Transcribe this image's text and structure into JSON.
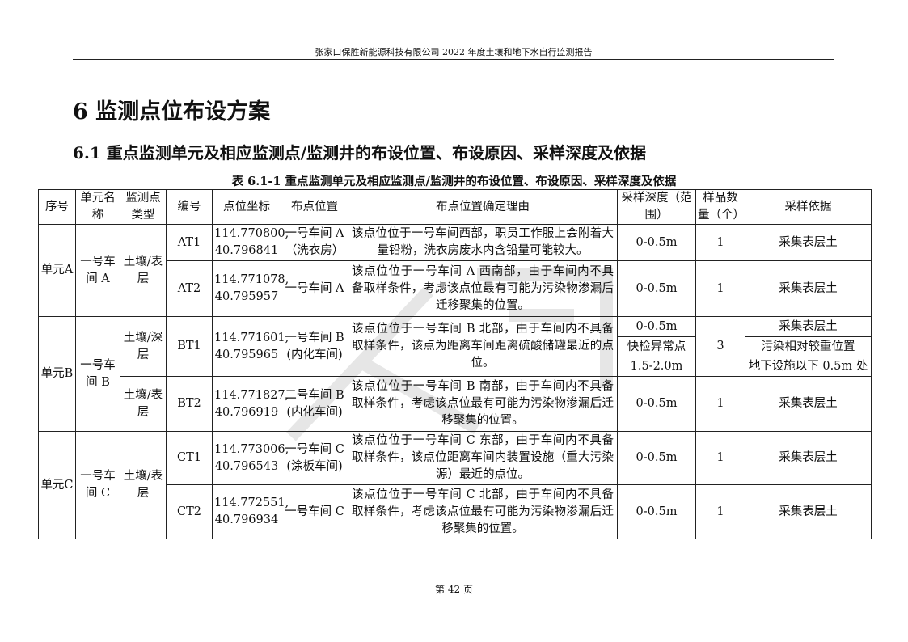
{
  "header": {
    "title": "张家口保胜新能源科技有限公司 2022 年度土壤和地下水自行监测报告"
  },
  "section": {
    "heading": "6 监测点位布设方案",
    "subheading": "6.1 重点监测单元及相应监测点/监测井的布设位置、布设原因、采样深度及依据"
  },
  "table": {
    "caption": "表 6.1-1 重点监测单元及相应监测点/监测井的布设位置、布设原因、采样深度及依据",
    "columns": [
      "序号",
      "单元名称",
      "监测点类型",
      "编号",
      "点位坐标",
      "布点位置",
      "布点位置确定理由",
      "采样深度（范围）",
      "样品数量（个）",
      "采样依据"
    ],
    "units": [
      {
        "seq": "单元A",
        "name": "一号车间 A",
        "type": "土壤/表层"
      },
      {
        "seq": "单元B",
        "name": "一号车间 B"
      },
      {
        "seq": "单元C",
        "name": "一号车间 C",
        "type": "土壤/表层"
      }
    ],
    "rows": [
      {
        "id": "AT1",
        "coord": "114.770800, 40.796841",
        "location": "一号车间 A（洗衣房）",
        "reason": "该点位位于一号车间西部，职员工作服上会附着大量铅粉，洗衣房废水内含铅量可能较大。",
        "depth": "0-0.5m",
        "count": "1",
        "basis": "采集表层土"
      },
      {
        "id": "AT2",
        "coord": "114.771078, 40.795957",
        "location": "一号车间 A",
        "reason": "该点位位于一号车间 A 西南部，由于车间内不具备取样条件，考虑该点位最有可能为污染物渗漏后迁移聚集的位置。",
        "depth": "0-0.5m",
        "count": "1",
        "basis": "采集表层土"
      },
      {
        "id": "BT1",
        "type": "土壤/深层",
        "coord": "114.771601, 40.795965",
        "location": "一号车间 B (内化车间)",
        "reason": "该点位位于一号车间 B 北部，由于车间内不具备取样条件，该点为距离车间距离硫酸储罐最近的点位。",
        "depths": [
          "0-0.5m",
          "快检异常点",
          "1.5-2.0m"
        ],
        "count": "3",
        "bases": [
          "采集表层土",
          "污染相对较重位置",
          "地下设施以下 0.5m 处"
        ]
      },
      {
        "id": "BT2",
        "type": "土壤/表层",
        "coord": "114.771827, 40.796919",
        "location": "二号车间 B (内化车间)",
        "reason": "该点位位于一号车间 B 南部，由于车间内不具备取样条件，考虑该点位最有可能为污染物渗漏后迁移聚集的位置。",
        "depth": "0-0.5m",
        "count": "1",
        "basis": "采集表层土"
      },
      {
        "id": "CT1",
        "coord": "114.773006, 40.796543",
        "location": "一号车间 C (涂板车间)",
        "reason": "该点位位于一号车间 C 东部，由于车间内不具备取样条件，该点位距离车间内装置设施（重大污染源）最近的点位。",
        "depth": "0-0.5m",
        "count": "1",
        "basis": "采集表层土"
      },
      {
        "id": "CT2",
        "coord": "114.772551, 40.796934",
        "location": "一号车间 C",
        "reason": "该点位位于一号车间 C 北部，由于车间内不具备取样条件，考虑该点位最有可能为污染物渗漏后迁移聚集的位置。",
        "depth": "0-0.5m",
        "count": "1",
        "basis": "采集表层土"
      }
    ]
  },
  "footer": {
    "page": "第 42 页"
  }
}
